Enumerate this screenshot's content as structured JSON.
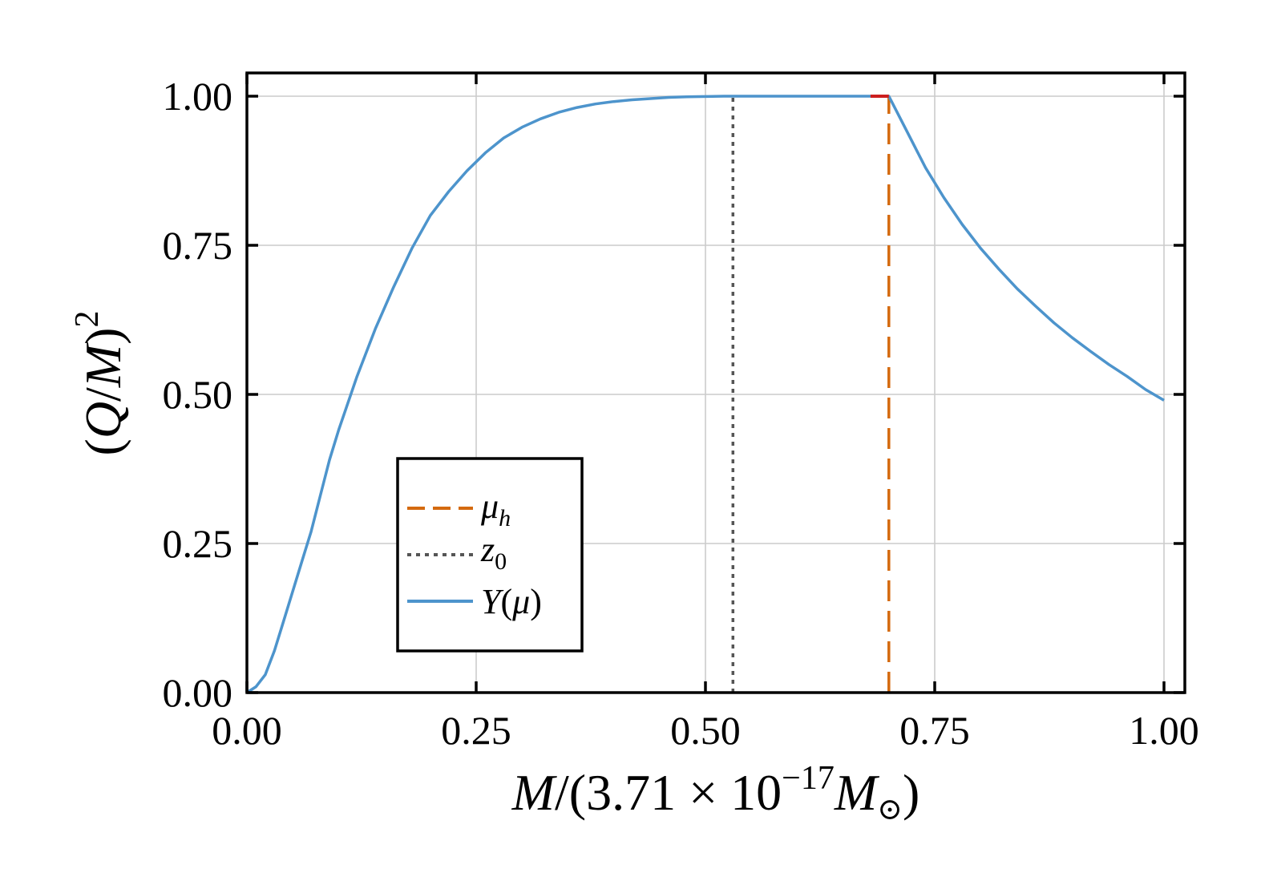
{
  "chart_data": {
    "type": "line",
    "xlabel": "M/(3.71 × 10⁻¹⁷ M⊙)",
    "xlabel_parts": {
      "m": "M",
      "slash": "/(3.71 × 10",
      "exp": "−17",
      "msun": "M",
      "sun": "⊙",
      "close": ")"
    },
    "ylabel": "(Q/M)²",
    "ylabel_parts": {
      "open": "(",
      "q": "Q",
      "slash": "/",
      "m": "M",
      "close": ")",
      "exp": "2"
    },
    "xlim": [
      0.0,
      1.0
    ],
    "ylim": [
      0.0,
      1.0
    ],
    "xticks": [
      "0.00",
      "0.25",
      "0.50",
      "0.75",
      "1.00"
    ],
    "yticks": [
      "0.00",
      "0.25",
      "0.50",
      "0.75",
      "1.00"
    ],
    "grid": true,
    "legend_position": "lower-left",
    "series": [
      {
        "name": "Y(μ)",
        "name_parts": {
          "y": "Y",
          "paren": "(",
          "mu": "μ",
          "close": ")"
        },
        "style": "solid",
        "color": "#4d94cc",
        "x": [
          0.0,
          0.01,
          0.02,
          0.03,
          0.04,
          0.05,
          0.06,
          0.07,
          0.08,
          0.09,
          0.1,
          0.12,
          0.14,
          0.16,
          0.18,
          0.2,
          0.22,
          0.24,
          0.26,
          0.28,
          0.3,
          0.32,
          0.34,
          0.36,
          0.38,
          0.4,
          0.42,
          0.44,
          0.46,
          0.48,
          0.5,
          0.52,
          0.55,
          0.6,
          0.65,
          0.7,
          0.72,
          0.74,
          0.76,
          0.78,
          0.8,
          0.82,
          0.84,
          0.86,
          0.88,
          0.9,
          0.92,
          0.94,
          0.96,
          0.98,
          1.0
        ],
        "y": [
          0.0,
          0.01,
          0.03,
          0.07,
          0.12,
          0.17,
          0.22,
          0.27,
          0.33,
          0.39,
          0.44,
          0.53,
          0.61,
          0.68,
          0.745,
          0.8,
          0.84,
          0.875,
          0.905,
          0.93,
          0.948,
          0.962,
          0.973,
          0.981,
          0.987,
          0.991,
          0.994,
          0.996,
          0.998,
          0.999,
          0.9995,
          1.0,
          1.0,
          1.0,
          1.0,
          1.0,
          0.94,
          0.88,
          0.83,
          0.785,
          0.745,
          0.71,
          0.677,
          0.648,
          0.62,
          0.595,
          0.572,
          0.55,
          0.53,
          0.508,
          0.49
        ]
      },
      {
        "name": "μ_h",
        "name_parts": {
          "mu": "μ",
          "sub": "h"
        },
        "style": "dashed",
        "color": "#d46a0f",
        "x": [
          0.7,
          0.7
        ],
        "y": [
          0.0,
          1.0
        ]
      },
      {
        "name": "z_0",
        "name_parts": {
          "z": "z",
          "sub": "0"
        },
        "style": "dotted",
        "color": "#555555",
        "x": [
          0.53,
          0.53
        ],
        "y": [
          0.0,
          1.0
        ]
      }
    ],
    "highlight_segment": {
      "x": [
        0.68,
        0.7
      ],
      "y": [
        1.0,
        1.0
      ],
      "color": "#cc1f1f"
    },
    "legend_order": [
      1,
      2,
      0
    ]
  }
}
